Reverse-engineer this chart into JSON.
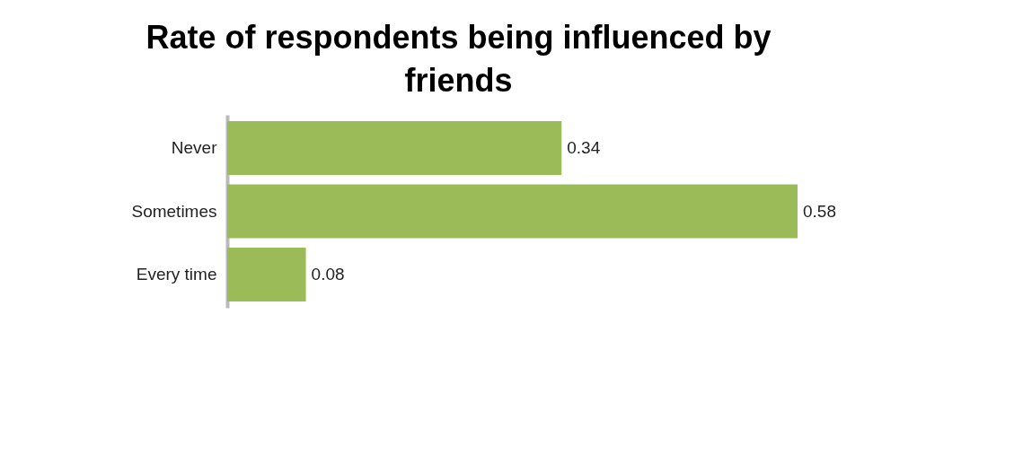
{
  "chart_data": {
    "type": "bar",
    "orientation": "horizontal",
    "title": "Rate of respondents being influenced by friends",
    "categories": [
      "Never",
      "Sometimes",
      "Every time"
    ],
    "values": [
      0.34,
      0.58,
      0.08
    ],
    "color": "#9bbb59",
    "data_labels": true
  }
}
